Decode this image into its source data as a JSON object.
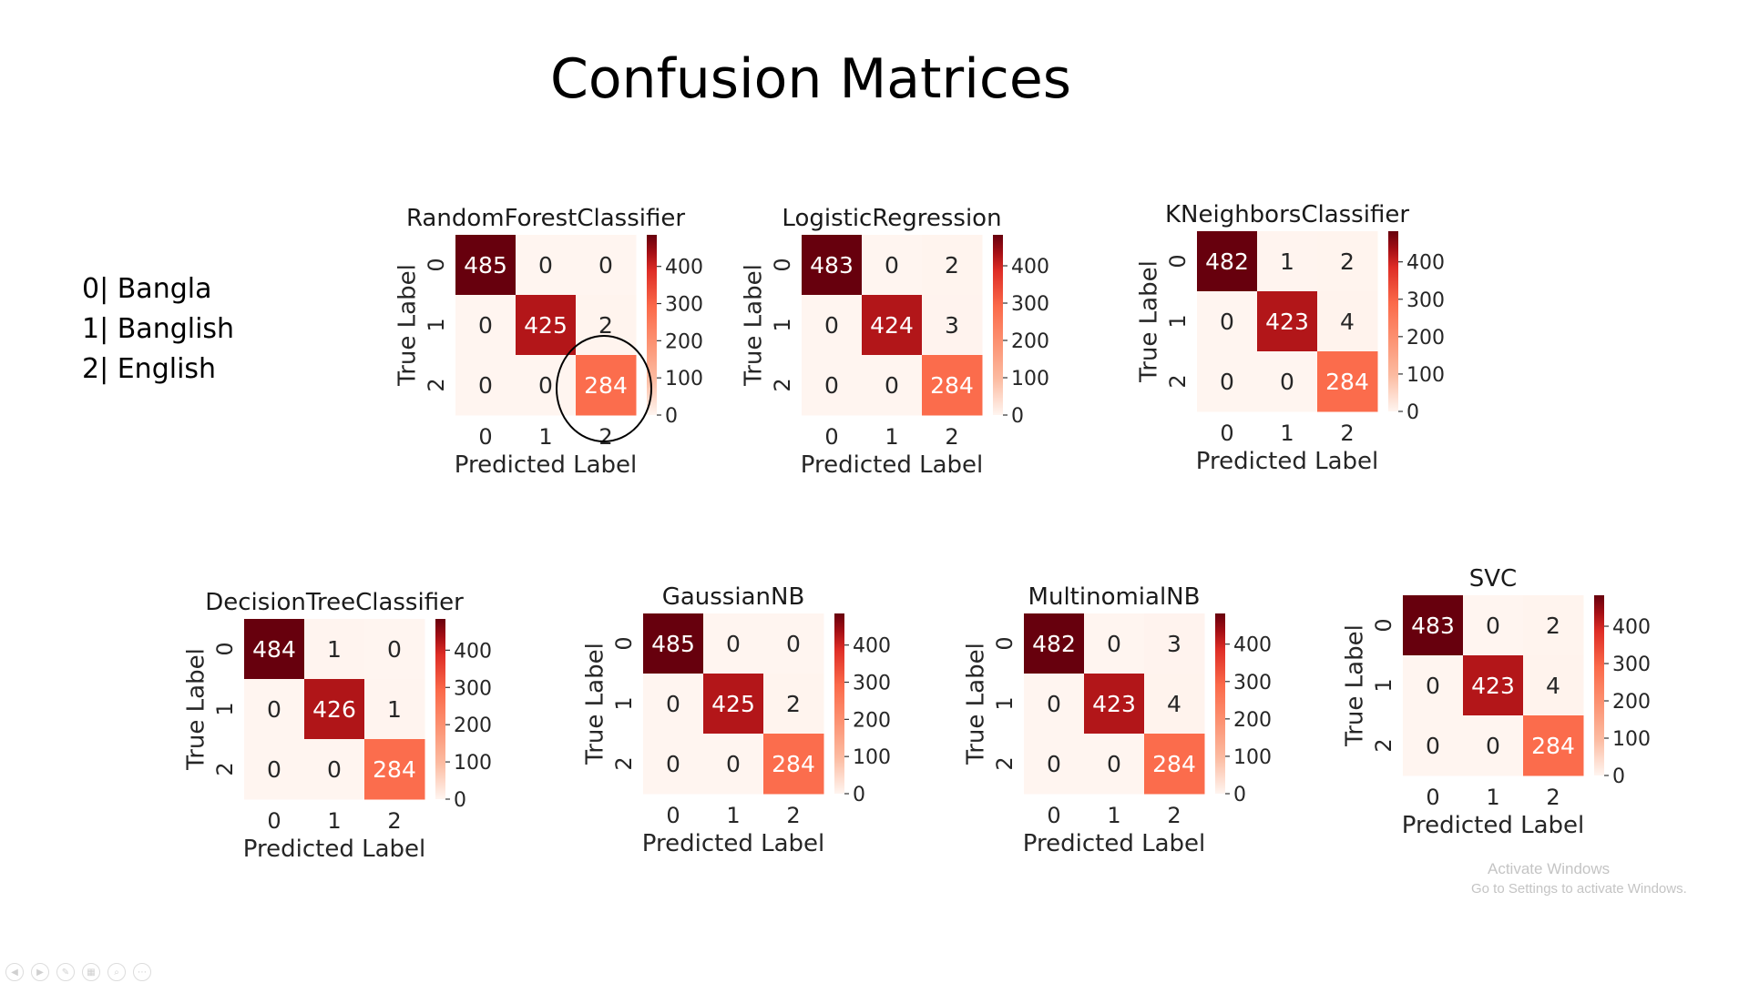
{
  "slide": {
    "title": "Confusion Matrices",
    "legend": [
      "0| Bangla",
      "1| Banglish",
      "2| English"
    ]
  },
  "watermark": {
    "line1": "Activate Windows",
    "line2": "Go to Settings to activate Windows."
  },
  "toolbar": [
    {
      "icon": "previous-slide-icon",
      "glyph": "◀"
    },
    {
      "icon": "next-slide-icon",
      "glyph": "▶"
    },
    {
      "icon": "pen-icon",
      "glyph": "✎"
    },
    {
      "icon": "slides-grid-icon",
      "glyph": "▦"
    },
    {
      "icon": "zoom-icon",
      "glyph": "⌕"
    },
    {
      "icon": "more-options-icon",
      "glyph": "⋯"
    }
  ],
  "annotation": {
    "type": "circle",
    "target": "RandomForestClassifier",
    "cell": [
      2,
      2
    ]
  },
  "chart_data": [
    {
      "type": "heatmap",
      "title": "RandomForestClassifier",
      "xlabel": "Predicted Label",
      "ylabel": "True Label",
      "x_ticks": [
        "0",
        "1",
        "2"
      ],
      "y_ticks": [
        "0",
        "1",
        "2"
      ],
      "values": [
        [
          485,
          0,
          0
        ],
        [
          0,
          425,
          2
        ],
        [
          0,
          0,
          284
        ]
      ],
      "colorbar": {
        "colormap": "Reds",
        "ticks": [
          0,
          100,
          200,
          300,
          400
        ],
        "range": [
          0,
          485
        ]
      }
    },
    {
      "type": "heatmap",
      "title": "LogisticRegression",
      "xlabel": "Predicted Label",
      "ylabel": "True Label",
      "x_ticks": [
        "0",
        "1",
        "2"
      ],
      "y_ticks": [
        "0",
        "1",
        "2"
      ],
      "values": [
        [
          483,
          0,
          2
        ],
        [
          0,
          424,
          3
        ],
        [
          0,
          0,
          284
        ]
      ],
      "colorbar": {
        "colormap": "Reds",
        "ticks": [
          0,
          100,
          200,
          300,
          400
        ],
        "range": [
          0,
          483
        ]
      }
    },
    {
      "type": "heatmap",
      "title": "KNeighborsClassifier",
      "xlabel": "Predicted Label",
      "ylabel": "True Label",
      "x_ticks": [
        "0",
        "1",
        "2"
      ],
      "y_ticks": [
        "0",
        "1",
        "2"
      ],
      "values": [
        [
          482,
          1,
          2
        ],
        [
          0,
          423,
          4
        ],
        [
          0,
          0,
          284
        ]
      ],
      "colorbar": {
        "colormap": "Reds",
        "ticks": [
          0,
          100,
          200,
          300,
          400
        ],
        "range": [
          0,
          482
        ]
      }
    },
    {
      "type": "heatmap",
      "title": "DecisionTreeClassifier",
      "xlabel": "Predicted Label",
      "ylabel": "True Label",
      "x_ticks": [
        "0",
        "1",
        "2"
      ],
      "y_ticks": [
        "0",
        "1",
        "2"
      ],
      "values": [
        [
          484,
          1,
          0
        ],
        [
          0,
          426,
          1
        ],
        [
          0,
          0,
          284
        ]
      ],
      "colorbar": {
        "colormap": "Reds",
        "ticks": [
          0,
          100,
          200,
          300,
          400
        ],
        "range": [
          0,
          484
        ]
      }
    },
    {
      "type": "heatmap",
      "title": "GaussianNB",
      "xlabel": "Predicted Label",
      "ylabel": "True Label",
      "x_ticks": [
        "0",
        "1",
        "2"
      ],
      "y_ticks": [
        "0",
        "1",
        "2"
      ],
      "values": [
        [
          485,
          0,
          0
        ],
        [
          0,
          425,
          2
        ],
        [
          0,
          0,
          284
        ]
      ],
      "colorbar": {
        "colormap": "Reds",
        "ticks": [
          0,
          100,
          200,
          300,
          400
        ],
        "range": [
          0,
          485
        ]
      }
    },
    {
      "type": "heatmap",
      "title": "MultinomialNB",
      "xlabel": "Predicted Label",
      "ylabel": "True Label",
      "x_ticks": [
        "0",
        "1",
        "2"
      ],
      "y_ticks": [
        "0",
        "1",
        "2"
      ],
      "values": [
        [
          482,
          0,
          3
        ],
        [
          0,
          423,
          4
        ],
        [
          0,
          0,
          284
        ]
      ],
      "colorbar": {
        "colormap": "Reds",
        "ticks": [
          0,
          100,
          200,
          300,
          400
        ],
        "range": [
          0,
          482
        ]
      }
    },
    {
      "type": "heatmap",
      "title": "SVC",
      "xlabel": "Predicted Label",
      "ylabel": "True Label",
      "x_ticks": [
        "0",
        "1",
        "2"
      ],
      "y_ticks": [
        "0",
        "1",
        "2"
      ],
      "values": [
        [
          483,
          0,
          2
        ],
        [
          0,
          423,
          4
        ],
        [
          0,
          0,
          284
        ]
      ],
      "colorbar": {
        "colormap": "Reds",
        "ticks": [
          0,
          100,
          200,
          300,
          400
        ],
        "range": [
          0,
          483
        ]
      }
    }
  ]
}
